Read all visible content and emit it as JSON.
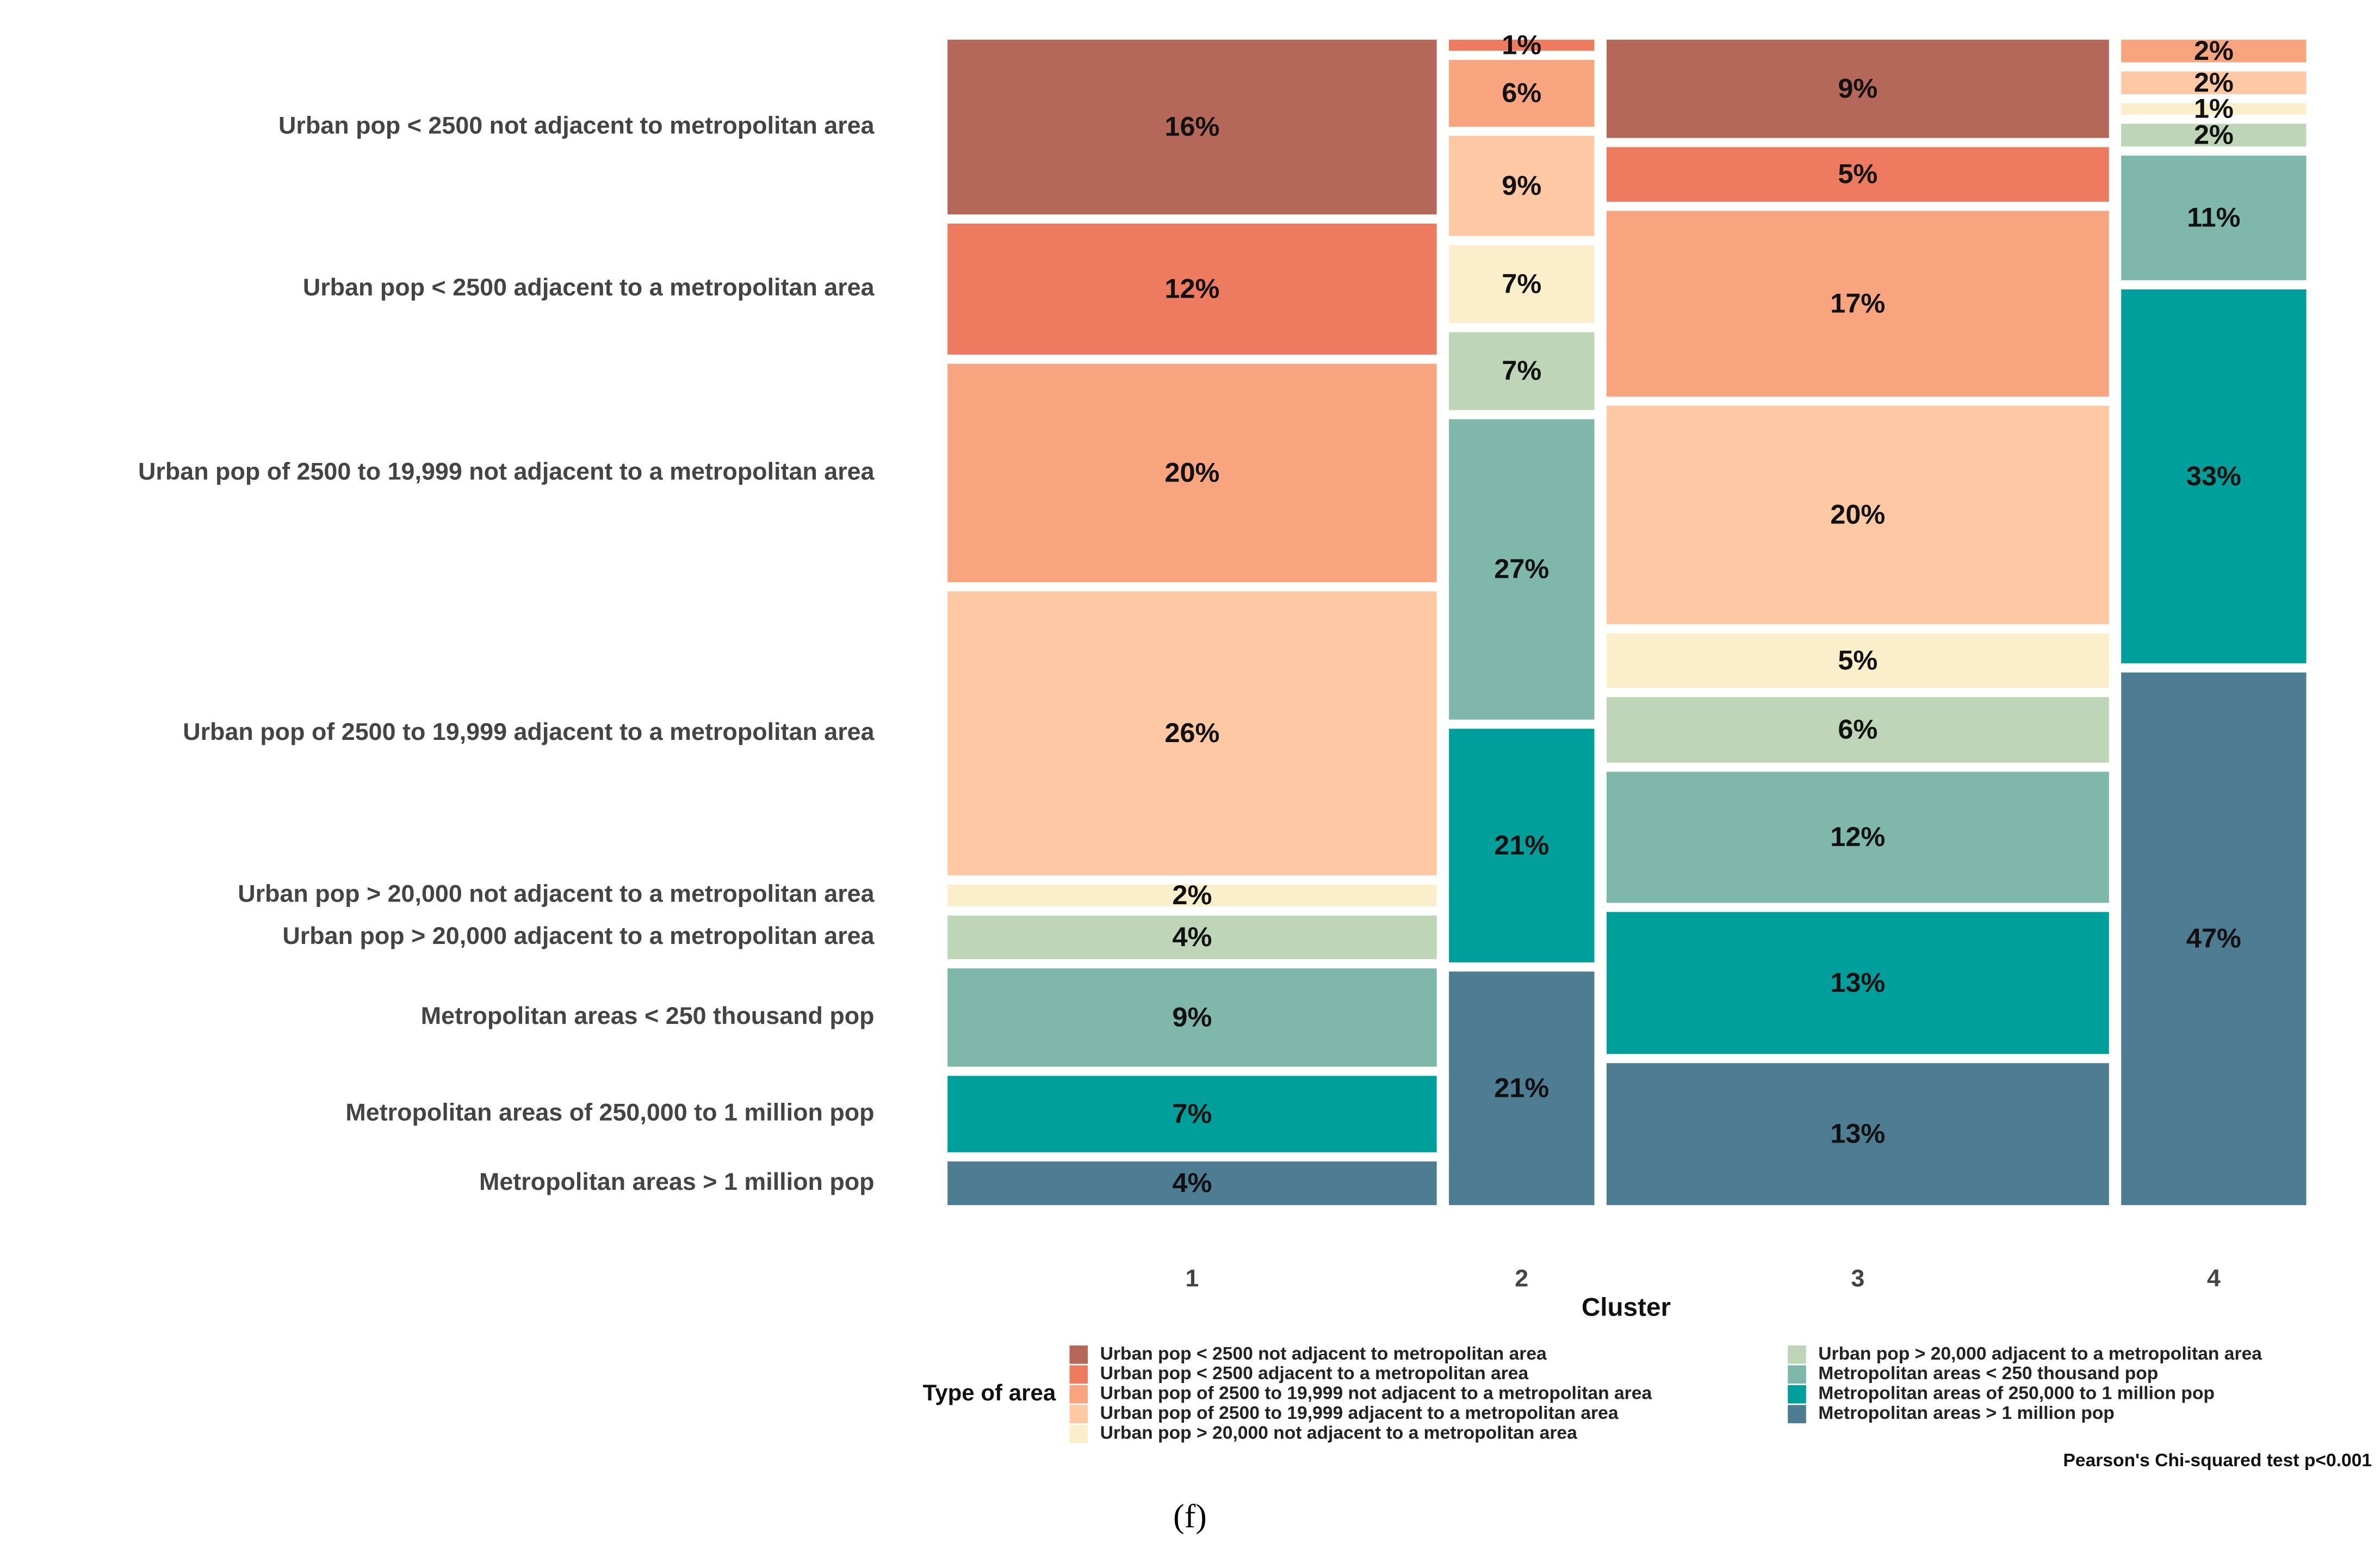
{
  "chart_data": {
    "type": "mosaic",
    "x_label": "Cluster",
    "legend_title": "Type of area",
    "caption": "Pearson's Chi-squared test p<0.001",
    "panel_label": "(f)",
    "categories": [
      "1",
      "2",
      "3",
      "4"
    ],
    "cluster_sizes": [
      37,
      11,
      38,
      14
    ],
    "series": [
      {
        "name": "Urban pop < 2500 not adjacent to metropolitan area",
        "color": "#b5685a",
        "values": [
          16,
          null,
          9,
          null
        ],
        "value_labels": [
          "16%",
          null,
          "9%",
          null
        ]
      },
      {
        "name": "Urban pop < 2500 adjacent to a metropolitan area",
        "color": "#ee7b5f",
        "values": [
          12,
          1,
          5,
          null
        ],
        "value_labels": [
          "12%",
          "1%",
          "5%",
          null
        ]
      },
      {
        "name": "Urban pop of 2500 to 19,999 not adjacent to a metropolitan area",
        "color": "#f7a47f",
        "values": [
          20,
          6,
          17,
          2
        ],
        "value_labels": [
          "20%",
          "6%",
          "17%",
          "2%"
        ]
      },
      {
        "name": "Urban pop of 2500 to 19,999 adjacent to a metropolitan area",
        "color": "#fdc8a3",
        "values": [
          26,
          9,
          20,
          2
        ],
        "value_labels": [
          "26%",
          "9%",
          "20%",
          "2%"
        ]
      },
      {
        "name": "Urban pop > 20,000 not adjacent to a metropolitan area",
        "color": "#fbeecb",
        "values": [
          2,
          7,
          5,
          1
        ],
        "value_labels": [
          "2%",
          "7%",
          "5%",
          "1%"
        ]
      },
      {
        "name": "Urban pop > 20,000 adjacent to a metropolitan area",
        "color": "#bed5b8",
        "values": [
          4,
          7,
          6,
          2
        ],
        "value_labels": [
          "4%",
          "7%",
          "6%",
          "2%"
        ]
      },
      {
        "name": "Metropolitan areas < 250 thousand pop",
        "color": "#7fb7ab",
        "values": [
          9,
          27,
          12,
          11
        ],
        "value_labels": [
          "9%",
          "27%",
          "12%",
          "11%"
        ]
      },
      {
        "name": "Metropolitan areas of 250,000 to 1 million pop",
        "color": "#009f9c",
        "values": [
          7,
          21,
          13,
          33
        ],
        "value_labels": [
          "7%",
          "21%",
          "13%",
          "33%"
        ]
      },
      {
        "name": "Metropolitan areas > 1 million pop",
        "color": "#4e7c93",
        "values": [
          4,
          21,
          13,
          47
        ],
        "value_labels": [
          "4%",
          "21%",
          "13%",
          "47%"
        ]
      }
    ]
  }
}
